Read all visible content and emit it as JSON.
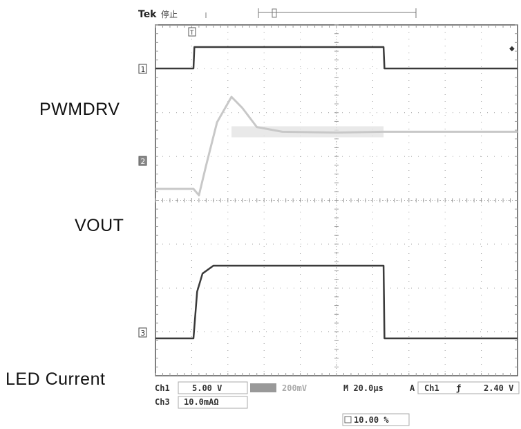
{
  "header": {
    "brand": "Tek",
    "status": "停止"
  },
  "labels": {
    "pwmdrv": "PWMDRV",
    "vout": "VOUT",
    "led_current": "LED  Current"
  },
  "channel_markers": [
    "1",
    "2",
    "3"
  ],
  "trigger_marker": "T",
  "readout": {
    "ch1_name": "Ch1",
    "ch1_scale": "5.00 V",
    "ch2_scale": "200mV",
    "timebase": "M 20.0µs",
    "trig_mode": "A",
    "trig_source": "Ch1",
    "trig_slope": "ƒ",
    "trig_level": "2.40 V",
    "ch3_name": "Ch3",
    "ch3_scale": "10.0mAΩ",
    "trig_position": "10.00 %"
  },
  "colors": {
    "trace_dark": "#3a3a3a",
    "trace_light": "#c8c8c8",
    "grid": "#9a9a9a",
    "border": "#555555"
  },
  "chart_data": {
    "type": "line",
    "x_unit": "µs",
    "x_range": [
      -20,
      180
    ],
    "series": [
      {
        "name": "PWMDRV",
        "y_unit": "V",
        "points": [
          [
            -20,
            0
          ],
          [
            1,
            0
          ],
          [
            1.5,
            5
          ],
          [
            106,
            5
          ],
          [
            106.5,
            0
          ],
          [
            180,
            0
          ]
        ]
      },
      {
        "name": "VOUT",
        "y_unit": "mV",
        "points": [
          [
            -20,
            0
          ],
          [
            1,
            0
          ],
          [
            4,
            -40
          ],
          [
            8,
            150
          ],
          [
            14,
            420
          ],
          [
            22,
            580
          ],
          [
            28,
            510
          ],
          [
            36,
            390
          ],
          [
            50,
            360
          ],
          [
            80,
            355
          ],
          [
            106,
            360
          ],
          [
            180,
            360
          ]
        ]
      },
      {
        "name": "LED Current",
        "y_unit": "mA",
        "points": [
          [
            -20,
            0
          ],
          [
            1,
            0
          ],
          [
            3,
            18
          ],
          [
            6,
            25
          ],
          [
            12,
            28
          ],
          [
            30,
            28
          ],
          [
            106,
            28
          ],
          [
            106.5,
            0
          ],
          [
            180,
            0
          ]
        ]
      }
    ]
  }
}
